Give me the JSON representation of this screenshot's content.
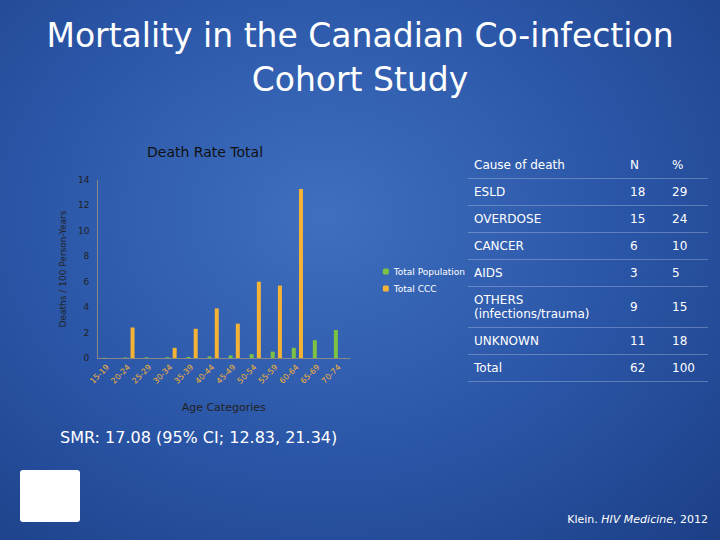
{
  "title": "Mortality in the Canadian Co-infection Cohort Study",
  "chart_data": {
    "type": "bar",
    "title": "Death Rate Total",
    "x_label": "Age Categories",
    "y_label": "Deaths / 100 Person-Years",
    "categories": [
      "15-19",
      "20-24",
      "25-29",
      "30-34",
      "35-39",
      "40-44",
      "45-49",
      "50-54",
      "55-59",
      "60-64",
      "65-69",
      "70-74"
    ],
    "series": [
      {
        "name": "Total Population",
        "color": "#7dc242",
        "values": [
          0.02,
          0.04,
          0.05,
          0.06,
          0.08,
          0.12,
          0.2,
          0.3,
          0.5,
          0.8,
          1.4,
          2.2
        ]
      },
      {
        "name": "Total CCC",
        "color": "#f5b335",
        "values": [
          0,
          2.4,
          0,
          0.8,
          2.3,
          3.9,
          2.7,
          6.0,
          5.7,
          13.3,
          0,
          0
        ]
      }
    ],
    "ylim": [
      0,
      14
    ],
    "yticks": [
      0,
      2,
      4,
      6,
      8,
      10,
      12,
      14
    ],
    "grid": false,
    "legend": "right"
  },
  "table": {
    "header": [
      "Cause of death",
      "N",
      "%"
    ],
    "rows": [
      [
        "ESLD",
        18,
        29
      ],
      [
        "OVERDOSE",
        15,
        24
      ],
      [
        "CANCER",
        6,
        10
      ],
      [
        "AIDS",
        3,
        5
      ],
      [
        "OTHERS (infections/trauma)",
        9,
        15
      ],
      [
        "UNKNOWN",
        11,
        18
      ],
      [
        "Total",
        62,
        100
      ]
    ]
  },
  "smr": "SMR: 17.08 (95% CI; 12.83, 21.34)",
  "citation": {
    "author": "Klein. ",
    "journal": "HIV Medicine",
    "year": ", 2012"
  }
}
